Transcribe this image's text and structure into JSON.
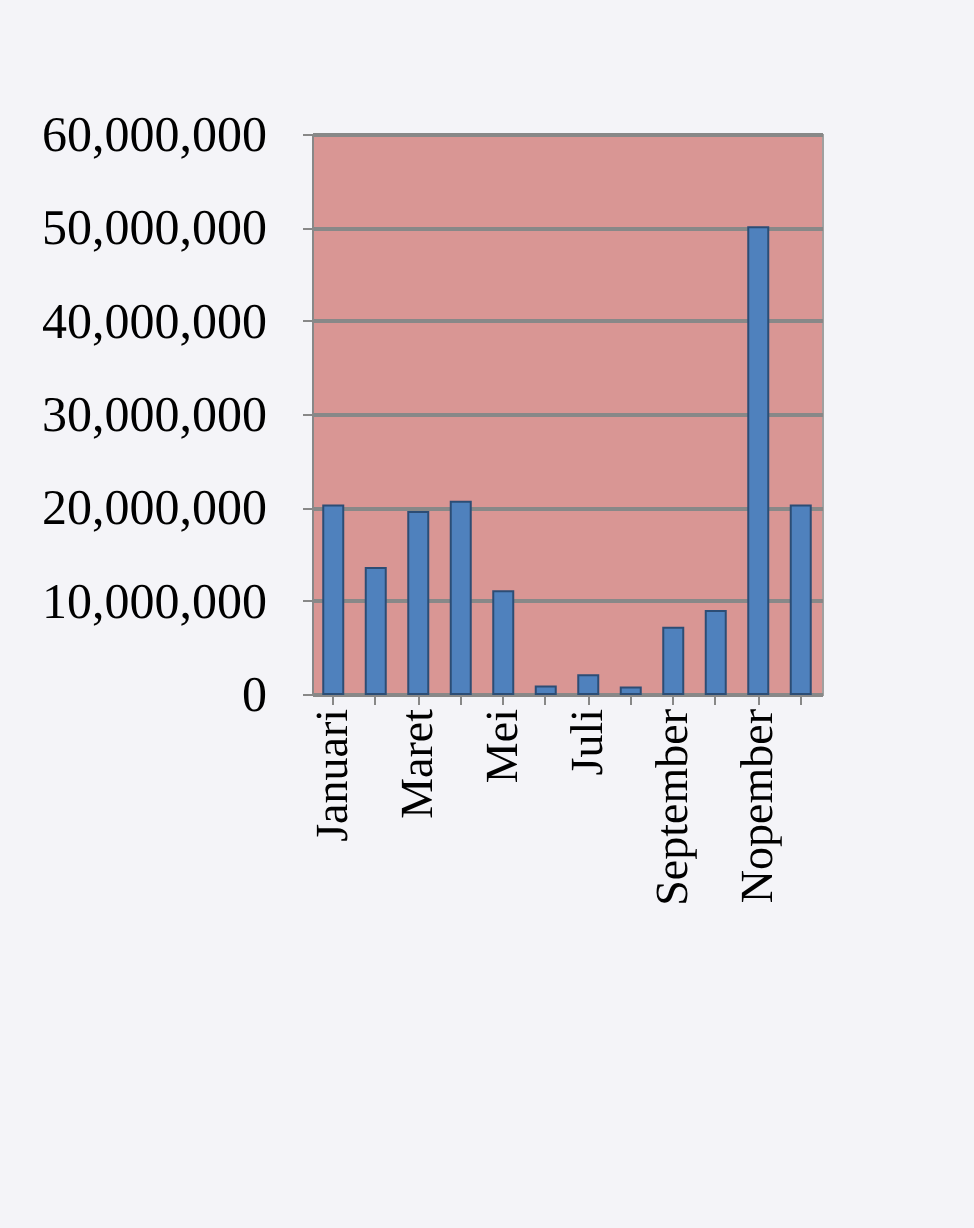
{
  "chart_data": {
    "type": "bar",
    "categories": [
      "Januari",
      null,
      "Maret",
      null,
      "Mei",
      null,
      "Juli",
      null,
      "September",
      null,
      "Nopember",
      null
    ],
    "values": [
      20200000,
      13500000,
      19500000,
      20600000,
      11000000,
      800000,
      2000000,
      700000,
      7100000,
      8900000,
      50000000,
      20200000
    ],
    "color": "#4f81bd",
    "ylim": [
      0,
      60000000
    ],
    "yticks": [
      0,
      {
        "value": 10000000,
        "label": "10,000,000"
      },
      {
        "value": 20000000,
        "label": "20,000,000"
      },
      {
        "value": 30000000,
        "label": "30,000,000"
      },
      {
        "value": 40000000,
        "label": "40,000,000"
      },
      {
        "value": 50000000,
        "label": "50,000,000"
      },
      {
        "value": 60000000,
        "label": "60,000,000"
      }
    ],
    "grid": "y"
  }
}
